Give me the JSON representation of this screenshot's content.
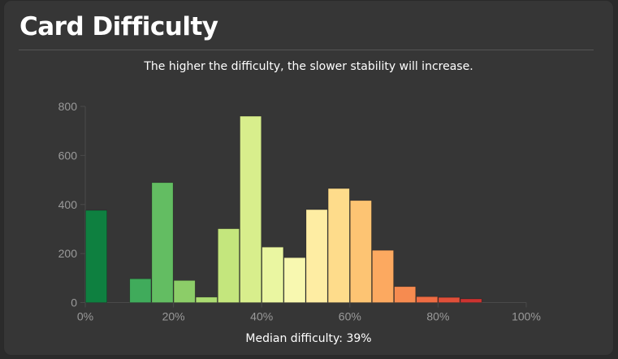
{
  "card": {
    "title": "Card Difficulty",
    "subtitle": "The higher the difficulty, the slower stability will increase.",
    "median": "Median difficulty: 39%"
  },
  "chart_data": {
    "type": "bar",
    "title": "Card Difficulty",
    "xlabel": "",
    "ylabel": "",
    "x_range": [
      0,
      100
    ],
    "ylim": [
      0,
      800
    ],
    "x_ticks": [
      "0%",
      "20%",
      "40%",
      "60%",
      "80%",
      "100%"
    ],
    "x_tick_values": [
      0,
      20,
      40,
      60,
      80,
      100
    ],
    "y_ticks": [
      "0",
      "200",
      "400",
      "600",
      "800"
    ],
    "y_tick_values": [
      0,
      200,
      400,
      600,
      800
    ],
    "bin_width": 5,
    "bins": [
      {
        "start": 0,
        "value": 376,
        "color": "#0e8040"
      },
      {
        "start": 5,
        "value": 0,
        "color": "#23994e"
      },
      {
        "start": 10,
        "value": 97,
        "color": "#40ab5b"
      },
      {
        "start": 15,
        "value": 489,
        "color": "#63bd62"
      },
      {
        "start": 20,
        "value": 90,
        "color": "#8ccd68"
      },
      {
        "start": 25,
        "value": 22,
        "color": "#abdb72"
      },
      {
        "start": 30,
        "value": 301,
        "color": "#c4e67d"
      },
      {
        "start": 35,
        "value": 760,
        "color": "#d8ee8c"
      },
      {
        "start": 40,
        "value": 226,
        "color": "#eaf6a1"
      },
      {
        "start": 45,
        "value": 183,
        "color": "#f8f8b0"
      },
      {
        "start": 50,
        "value": 379,
        "color": "#feeda3"
      },
      {
        "start": 55,
        "value": 465,
        "color": "#fedc8b"
      },
      {
        "start": 60,
        "value": 416,
        "color": "#fdc473"
      },
      {
        "start": 65,
        "value": 213,
        "color": "#fca960"
      },
      {
        "start": 70,
        "value": 65,
        "color": "#f68b50"
      },
      {
        "start": 75,
        "value": 24,
        "color": "#ee6c43"
      },
      {
        "start": 80,
        "value": 21,
        "color": "#e04f39"
      },
      {
        "start": 85,
        "value": 15,
        "color": "#cc3330"
      }
    ]
  }
}
